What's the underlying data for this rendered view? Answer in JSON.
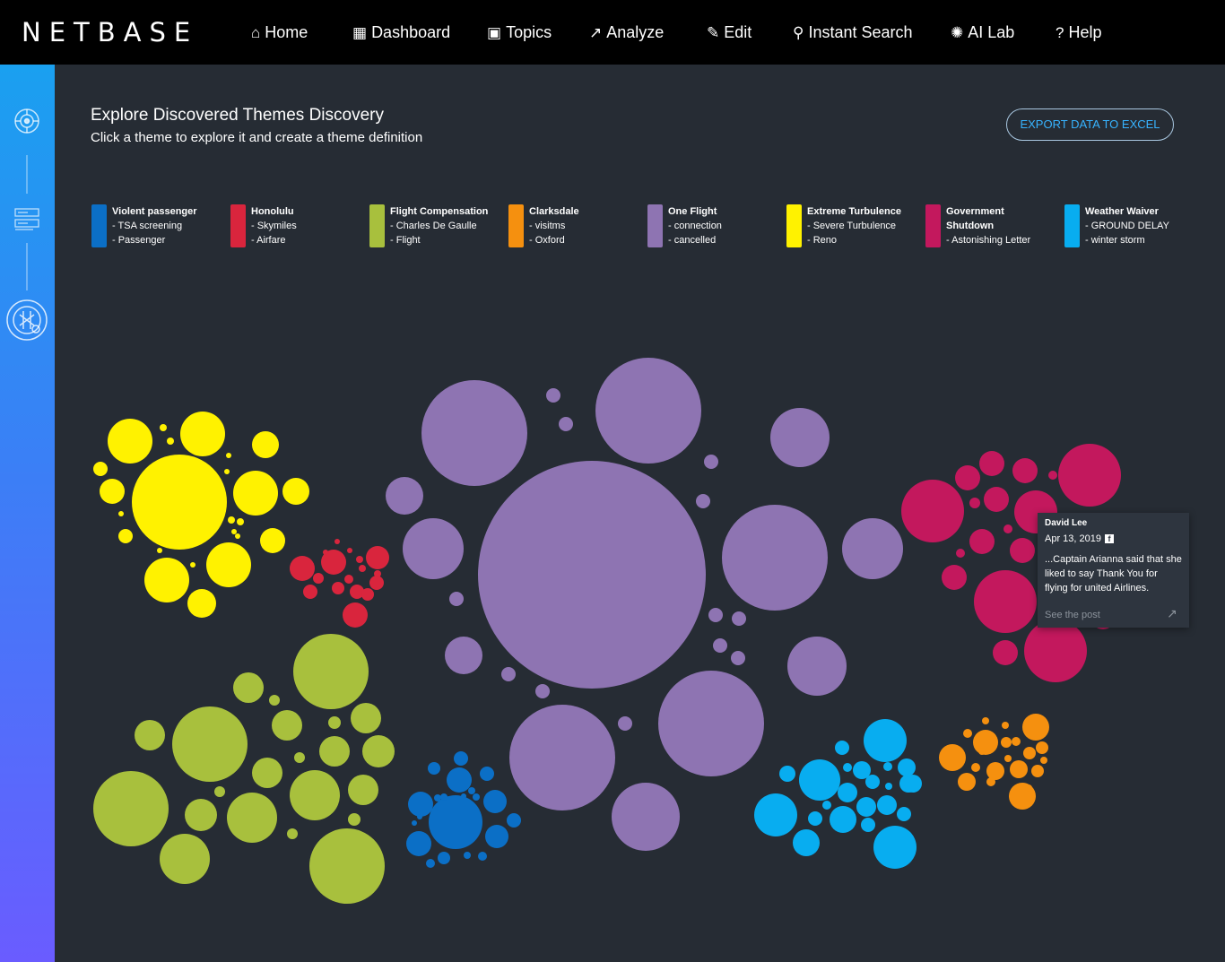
{
  "brand": {
    "logo": "NETBASE"
  },
  "nav": [
    {
      "icon": "home-icon",
      "glyph": "⌂",
      "label": "Home"
    },
    {
      "icon": "dashboard-grid-icon",
      "glyph": "▦",
      "label": "Dashboard"
    },
    {
      "icon": "topics-icon",
      "glyph": "▣",
      "label": "Topics"
    },
    {
      "icon": "analyze-chart-icon",
      "glyph": "↗",
      "label": "Analyze"
    },
    {
      "icon": "edit-icon",
      "glyph": "✎",
      "label": "Edit"
    },
    {
      "icon": "search-icon",
      "glyph": "⚲",
      "label": "Instant Search"
    },
    {
      "icon": "ai-lab-icon",
      "glyph": "✺",
      "label": "AI Lab"
    },
    {
      "icon": "help-icon",
      "glyph": "?",
      "label": "Help"
    }
  ],
  "sidebar": [
    {
      "icon": "ai-brain-icon"
    },
    {
      "icon": "list-view-icon"
    },
    {
      "icon": "theme-discovery-icon"
    }
  ],
  "page": {
    "title": "Explore Discovered Themes Discovery",
    "subtitle": "Click a theme to explore it and create a theme definition",
    "export_label": "EXPORT DATA TO EXCEL"
  },
  "themes": [
    {
      "name": "Violent passenger",
      "terms": [
        "- TSA screening",
        "- Passenger"
      ],
      "color": "#0b6fc6"
    },
    {
      "name": "Honolulu",
      "terms": [
        "- Skymiles",
        "- Airfare"
      ],
      "color": "#d9253d"
    },
    {
      "name": "Flight Compensation",
      "terms": [
        "- Charles De Gaulle",
        "- Flight"
      ],
      "color": "#a8c03d"
    },
    {
      "name": "Clarksdale",
      "terms": [
        "- visitms",
        "- Oxford"
      ],
      "color": "#f5900f"
    },
    {
      "name": "One Flight",
      "terms": [
        "- connection",
        "- cancelled"
      ],
      "color": "#8e74b2"
    },
    {
      "name": "Extreme Turbulence",
      "terms": [
        "- Severe Turbulence",
        "- Reno"
      ],
      "color": "#fff200"
    },
    {
      "name": "Government Shutdown",
      "terms": [
        "- Astonishing Letter"
      ],
      "color": "#c3185d"
    },
    {
      "name": "Weather Waiver",
      "terms": [
        "- GROUND DELAY",
        "- winter storm"
      ],
      "color": "#08adf0"
    }
  ],
  "tooltip": {
    "author": "David Lee",
    "date": "Apr 13, 2019",
    "source_icon": "facebook-icon",
    "text": "...Captain Arianna said that she  liked to say Thank You for flying for united Airlines.",
    "link_label": "See the post",
    "link_icon": "external-link-icon"
  }
}
